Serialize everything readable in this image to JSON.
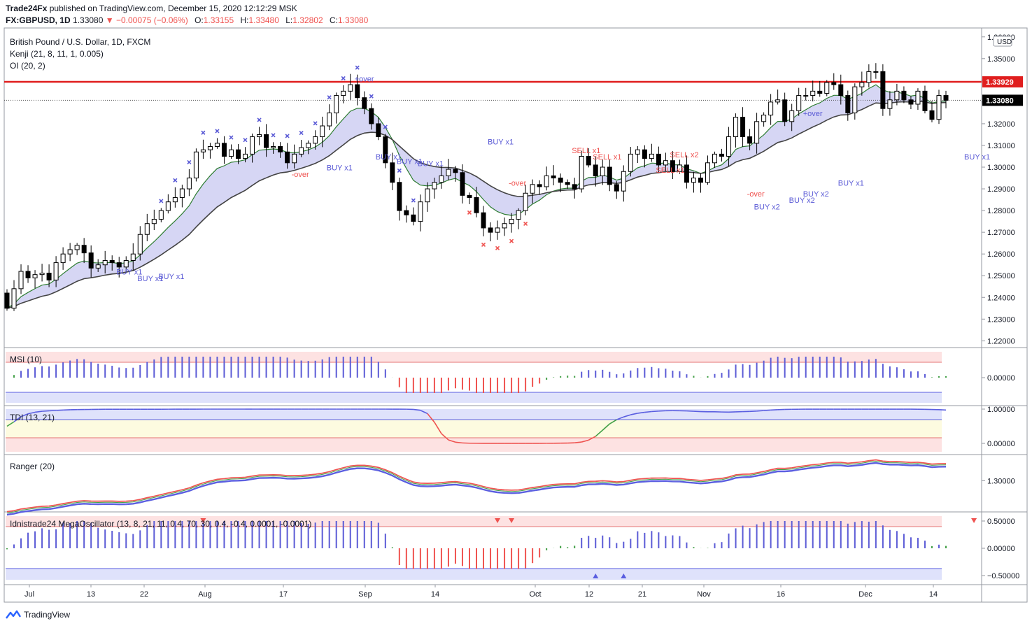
{
  "header": {
    "publisher": "Trade24Fx",
    "published_text": "published on TradingView.com, December 15, 2020 12:12:29 MSK",
    "symbol": "FX:GBPUSD, 1D",
    "last": "1.33080",
    "change": "▼ −0.00075 (−0.06%)",
    "o_label": "O:",
    "o": "1.33155",
    "h_label": "H:",
    "h": "1.33480",
    "l_label": "L:",
    "l": "1.32802",
    "c_label": "C:",
    "c": "1.33080"
  },
  "legend": {
    "title": "British Pound / U.S. Dollar, 1D, FXCM",
    "kenji": "Kenji (21, 8, 11, 1, 0.005)",
    "oi": "OI (20, 2)"
  },
  "price_axis": {
    "currency": "USD",
    "ticks": [
      "1.36000",
      "1.35000",
      "1.34000",
      "1.33000",
      "1.32000",
      "1.31000",
      "1.30000",
      "1.29000",
      "1.28000",
      "1.27000",
      "1.26000",
      "1.25000",
      "1.24000",
      "1.23000",
      "1.22000"
    ],
    "resistance_label": "1.33929",
    "resistance": 1.33929,
    "last_label": "1.33080",
    "last": 1.3308
  },
  "x_labels": [
    "Jul",
    "13",
    "22",
    "Aug",
    "17",
    "Sep",
    "14",
    "Oct",
    "12",
    "21",
    "Nov",
    "16",
    "Dec",
    "14"
  ],
  "annotations": [
    {
      "text": "BUY x1",
      "bar": 17,
      "price": 1.2505,
      "color": "#5b5bd6"
    },
    {
      "text": "BUY x1",
      "bar": 20,
      "price": 1.2475,
      "color": "#5b5bd6"
    },
    {
      "text": "BUY x1",
      "bar": 23,
      "price": 1.2485,
      "color": "#5b5bd6"
    },
    {
      "text": "-over",
      "bar": 42,
      "price": 1.2955,
      "color": "#ef5350"
    },
    {
      "text": "BUY x1",
      "bar": 47,
      "price": 1.2985,
      "color": "#5b5bd6"
    },
    {
      "text": "+over",
      "bar": 51,
      "price": 1.3395,
      "color": "#5b5bd6"
    },
    {
      "text": "BUY x1",
      "bar": 54,
      "price": 1.3035,
      "color": "#5b5bd6"
    },
    {
      "text": "BUY x1",
      "bar": 57,
      "price": 1.3015,
      "color": "#5b5bd6"
    },
    {
      "text": "BUY x1",
      "bar": 60,
      "price": 1.3005,
      "color": "#5b5bd6"
    },
    {
      "text": "BUY x1",
      "bar": 70,
      "price": 1.3105,
      "color": "#5b5bd6"
    },
    {
      "text": "-over",
      "bar": 73,
      "price": 1.2915,
      "color": "#ef5350"
    },
    {
      "text": "SELL x1",
      "bar": 82,
      "price": 1.3065,
      "color": "#ef5350"
    },
    {
      "text": "SELL x1",
      "bar": 85,
      "price": 1.3035,
      "color": "#ef5350"
    },
    {
      "text": "SELL x2",
      "bar": 96,
      "price": 1.3045,
      "color": "#ef5350"
    },
    {
      "text": "SELL x1",
      "bar": 94,
      "price": 1.2975,
      "color": "#ef5350"
    },
    {
      "text": "-over",
      "bar": 107,
      "price": 1.2865,
      "color": "#ef5350"
    },
    {
      "text": "BUY x2",
      "bar": 108,
      "price": 1.2805,
      "color": "#5b5bd6"
    },
    {
      "text": "BUY x2",
      "bar": 113,
      "price": 1.2835,
      "color": "#5b5bd6"
    },
    {
      "text": "BUY x2",
      "bar": 115,
      "price": 1.2865,
      "color": "#5b5bd6"
    },
    {
      "text": "+over",
      "bar": 115,
      "price": 1.3235,
      "color": "#5b5bd6"
    },
    {
      "text": "BUY x1",
      "bar": 120,
      "price": 1.2915,
      "color": "#5b5bd6"
    },
    {
      "text": "BUY x1",
      "bar": 138,
      "price": 1.3035,
      "color": "#5b5bd6"
    },
    {
      "text": "BUY x1",
      "bar": 155,
      "price": 1.3195,
      "color": "#5b5bd6"
    },
    {
      "text": "BUY x1",
      "bar": 163,
      "price": 1.3235,
      "color": "#5b5bd6"
    },
    {
      "text": "-over",
      "bar": 164,
      "price": 1.3165,
      "color": "#ef5350"
    }
  ],
  "panes": {
    "msi": {
      "title": "MSI (10)",
      "zero_label": "0.00000"
    },
    "tdi": {
      "title": "TDI (13, 21)",
      "ticks": [
        "1.00000",
        "0.00000"
      ]
    },
    "ranger": {
      "title": "Ranger (20)",
      "tick": "1.30000"
    },
    "mega": {
      "title": "Idnistrade24 MegaOscillator (13, 8, 21, 11, 0.4, 70, 30, 0.4, -0.4, 0.0001, -0.0001)",
      "ticks": [
        "0.50000",
        "0.00000",
        "−0.50000"
      ]
    }
  },
  "footer": {
    "brand": "TradingView"
  },
  "colors": {
    "up": "#ffffff",
    "down": "#000000",
    "resistance": "#e01e1e",
    "band": "#c8c8f0",
    "buy": "#5b5bd6",
    "sell": "#ef5350",
    "green": "#43a047",
    "tdi_blue": "#5a5ee0"
  },
  "chart_data": {
    "type": "candlestick",
    "title": "British Pound / U.S. Dollar, 1D, FXCM",
    "period": "2020-07 to 2020-12-15",
    "ylim": [
      1.2185,
      1.3625
    ],
    "resistance": 1.33929,
    "last": 1.3308,
    "closes": [
      1.235,
      1.244,
      1.252,
      1.249,
      1.2505,
      1.2512,
      1.248,
      1.256,
      1.26,
      1.262,
      1.264,
      1.2605,
      1.2535,
      1.255,
      1.257,
      1.256,
      1.254,
      1.257,
      1.26,
      1.269,
      1.274,
      1.276,
      1.28,
      1.284,
      1.286,
      1.29,
      1.295,
      1.307,
      1.308,
      1.3095,
      1.311,
      1.305,
      1.308,
      1.304,
      1.306,
      1.314,
      1.315,
      1.309,
      1.3095,
      1.307,
      1.302,
      1.306,
      1.309,
      1.311,
      1.314,
      1.319,
      1.325,
      1.333,
      1.335,
      1.338,
      1.332,
      1.327,
      1.32,
      1.314,
      1.302,
      1.293,
      1.28,
      1.278,
      1.275,
      1.284,
      1.29,
      1.293,
      1.296,
      1.299,
      1.2975,
      1.287,
      1.286,
      1.279,
      1.272,
      1.27,
      1.272,
      1.274,
      1.276,
      1.28,
      1.288,
      1.292,
      1.291,
      1.296,
      1.295,
      1.293,
      1.292,
      1.29,
      1.305,
      1.301,
      1.296,
      1.3,
      1.292,
      1.289,
      1.298,
      1.306,
      1.308,
      1.304,
      1.306,
      1.301,
      1.303,
      1.298,
      1.301,
      1.293,
      1.295,
      1.293,
      1.302,
      1.306,
      1.305,
      1.314,
      1.323,
      1.314,
      1.311,
      1.321,
      1.324,
      1.33,
      1.331,
      1.321,
      1.326,
      1.333,
      1.333,
      1.335,
      1.334,
      1.339,
      1.338,
      1.333,
      1.325,
      1.337,
      1.339,
      1.344,
      1.344,
      1.327,
      1.331,
      1.335,
      1.331,
      1.329,
      1.335,
      1.326,
      1.322,
      1.333,
      1.3308
    ]
  }
}
